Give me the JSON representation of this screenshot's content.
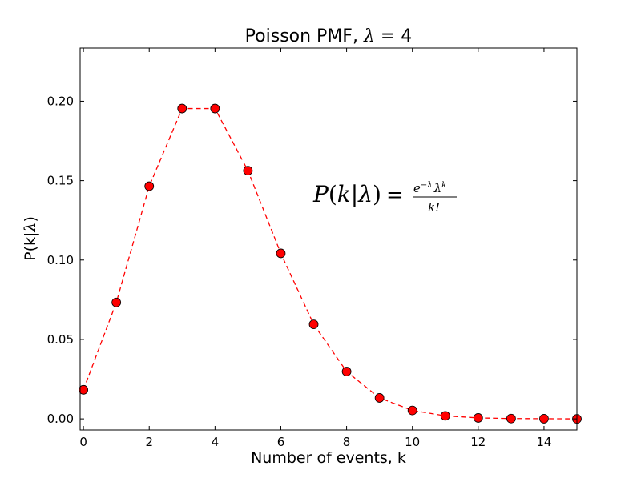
{
  "chart_data": {
    "type": "line",
    "title_prefix": "Poisson PMF, ",
    "title_symbol": "λ",
    "title_suffix": " = 4",
    "xlabel": "Number of events, k",
    "ylabel_prefix": "P(k|",
    "ylabel_symbol": "λ",
    "ylabel_suffix": ")",
    "xlim": [
      -0.1,
      15
    ],
    "ylim": [
      -0.007,
      0.2335
    ],
    "xticks": [
      0,
      2,
      4,
      6,
      8,
      10,
      12,
      14
    ],
    "xtick_labels": [
      "0",
      "2",
      "4",
      "6",
      "8",
      "10",
      "12",
      "14"
    ],
    "yticks": [
      0.0,
      0.05,
      0.1,
      0.15,
      0.2
    ],
    "ytick_labels": [
      "0.00",
      "0.05",
      "0.10",
      "0.15",
      "0.20"
    ],
    "grid": false,
    "series": [
      {
        "x": [
          0,
          1,
          2,
          3,
          4,
          5,
          6,
          7,
          8,
          9,
          10,
          11,
          12,
          13,
          14,
          15
        ],
        "values": [
          0.0183,
          0.0733,
          0.1465,
          0.1954,
          0.1954,
          0.1563,
          0.1042,
          0.0595,
          0.0298,
          0.0132,
          0.0053,
          0.0019,
          0.0006,
          0.0002,
          0.0001,
          0.0
        ],
        "line_color": "#ff0000",
        "line_style": "dashed",
        "marker": "circle",
        "marker_color": "#ff0000"
      }
    ],
    "annotation": {
      "lhs_P": "P",
      "lhs_paren_open": "(",
      "lhs_k": "k",
      "lhs_bar": "|",
      "lhs_lambda": "λ",
      "lhs_paren_close": ")",
      "equals": "=",
      "num_e": "e",
      "num_exp": "−λ",
      "num_lambda": "λ",
      "num_k": "k",
      "den": "k!"
    }
  }
}
